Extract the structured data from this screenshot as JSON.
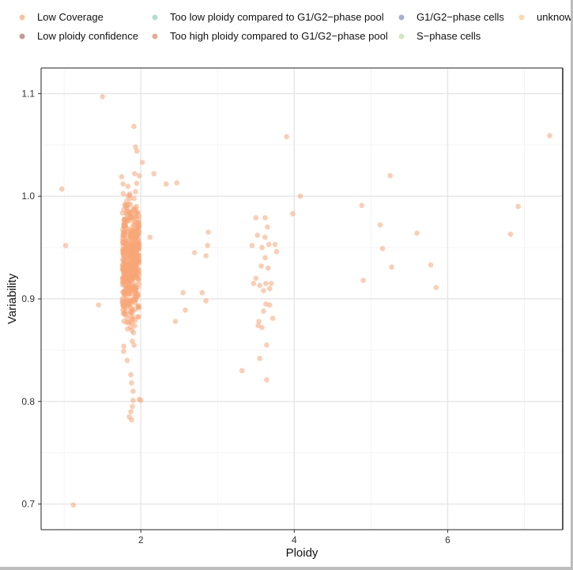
{
  "chart_data": {
    "type": "scatter",
    "xlabel": "Ploidy",
    "ylabel": "Variability",
    "xlim": [
      0.7,
      7.5
    ],
    "ylim": [
      0.675,
      1.125
    ],
    "x_ticks": [
      {
        "value": 2,
        "label": "2"
      },
      {
        "value": 4,
        "label": "4"
      },
      {
        "value": 6,
        "label": "6"
      }
    ],
    "y_ticks": [
      {
        "value": 0.7,
        "label": "0.7"
      },
      {
        "value": 0.8,
        "label": "0.8"
      },
      {
        "value": 0.9,
        "label": "0.9"
      },
      {
        "value": 1.0,
        "label": "1.0"
      },
      {
        "value": 1.1,
        "label": "1.1"
      }
    ],
    "grid": true,
    "legend_position": "top",
    "legend": [
      {
        "label": "Low Coverage",
        "color": "#f9c39e"
      },
      {
        "label": "Too low ploidy compared to G1/G2−phase pool",
        "color": "#b3dfd2"
      },
      {
        "label": "G1/G2−phase cells",
        "color": "#a3b3d1"
      },
      {
        "label": "unknown",
        "color": "#fbd9b3"
      },
      {
        "label": "Low ploidy confidence",
        "color": "#c49a92"
      },
      {
        "label": "Too high ploidy compared to G1/G2−phase pool",
        "color": "#e7ab92"
      },
      {
        "label": "S−phase cells",
        "color": "#cfe8bf"
      }
    ],
    "series": [
      {
        "name": "Low Coverage",
        "color": "#f7a676",
        "points": [
          [
            1.5,
            1.097
          ],
          [
            1.91,
            1.068
          ],
          [
            1.93,
            1.048
          ],
          [
            1.95,
            1.044
          ],
          [
            2.02,
            1.033
          ],
          [
            1.75,
            1.019
          ],
          [
            2.17,
            1.022
          ],
          [
            1.92,
            1.022
          ],
          [
            2.33,
            1.012
          ],
          [
            2.47,
            1.013
          ],
          [
            0.97,
            1.007
          ],
          [
            1.02,
            0.952
          ],
          [
            1.45,
            0.894
          ],
          [
            1.12,
            0.699
          ],
          [
            2.12,
            0.96
          ],
          [
            2.55,
            0.906
          ],
          [
            2.58,
            0.889
          ],
          [
            2.45,
            0.878
          ],
          [
            2.7,
            0.945
          ],
          [
            2.8,
            0.906
          ],
          [
            2.85,
            0.898
          ],
          [
            2.85,
            0.942
          ],
          [
            2.87,
            0.952
          ],
          [
            2.88,
            0.965
          ],
          [
            1.98,
            0.802
          ],
          [
            2.0,
            0.801
          ],
          [
            1.9,
            0.801
          ],
          [
            1.87,
            0.79
          ],
          [
            1.85,
            0.785
          ],
          [
            1.88,
            0.782
          ],
          [
            1.89,
            0.795
          ],
          [
            1.9,
            0.81
          ],
          [
            1.88,
            0.818
          ],
          [
            1.87,
            0.826
          ],
          [
            3.32,
            0.83
          ],
          [
            3.45,
            0.952
          ],
          [
            3.47,
            0.915
          ],
          [
            3.5,
            0.979
          ],
          [
            3.5,
            0.92
          ],
          [
            3.52,
            0.962
          ],
          [
            3.53,
            0.874
          ],
          [
            3.54,
            0.878
          ],
          [
            3.55,
            0.842
          ],
          [
            3.55,
            0.913
          ],
          [
            3.57,
            0.932
          ],
          [
            3.58,
            0.872
          ],
          [
            3.58,
            0.95
          ],
          [
            3.6,
            0.888
          ],
          [
            3.6,
            0.908
          ],
          [
            3.62,
            0.979
          ],
          [
            3.62,
            0.96
          ],
          [
            3.62,
            0.94
          ],
          [
            3.63,
            0.915
          ],
          [
            3.63,
            0.895
          ],
          [
            3.64,
            0.855
          ],
          [
            3.64,
            0.821
          ],
          [
            3.65,
            0.97
          ],
          [
            3.66,
            0.93
          ],
          [
            3.67,
            0.953
          ],
          [
            3.68,
            0.91
          ],
          [
            3.7,
            0.915
          ],
          [
            3.72,
            0.881
          ],
          [
            3.75,
            0.953
          ],
          [
            3.77,
            0.946
          ],
          [
            3.68,
            0.894
          ],
          [
            3.9,
            1.058
          ],
          [
            3.98,
            0.983
          ],
          [
            4.08,
            1.0
          ],
          [
            4.88,
            0.991
          ],
          [
            4.9,
            0.918
          ],
          [
            5.12,
            0.972
          ],
          [
            5.15,
            0.949
          ],
          [
            5.25,
            1.02
          ],
          [
            5.27,
            0.931
          ],
          [
            5.6,
            0.964
          ],
          [
            5.78,
            0.933
          ],
          [
            5.85,
            0.911
          ],
          [
            6.82,
            0.963
          ],
          [
            6.92,
            0.99
          ],
          [
            7.33,
            1.059
          ]
        ]
      }
    ]
  }
}
